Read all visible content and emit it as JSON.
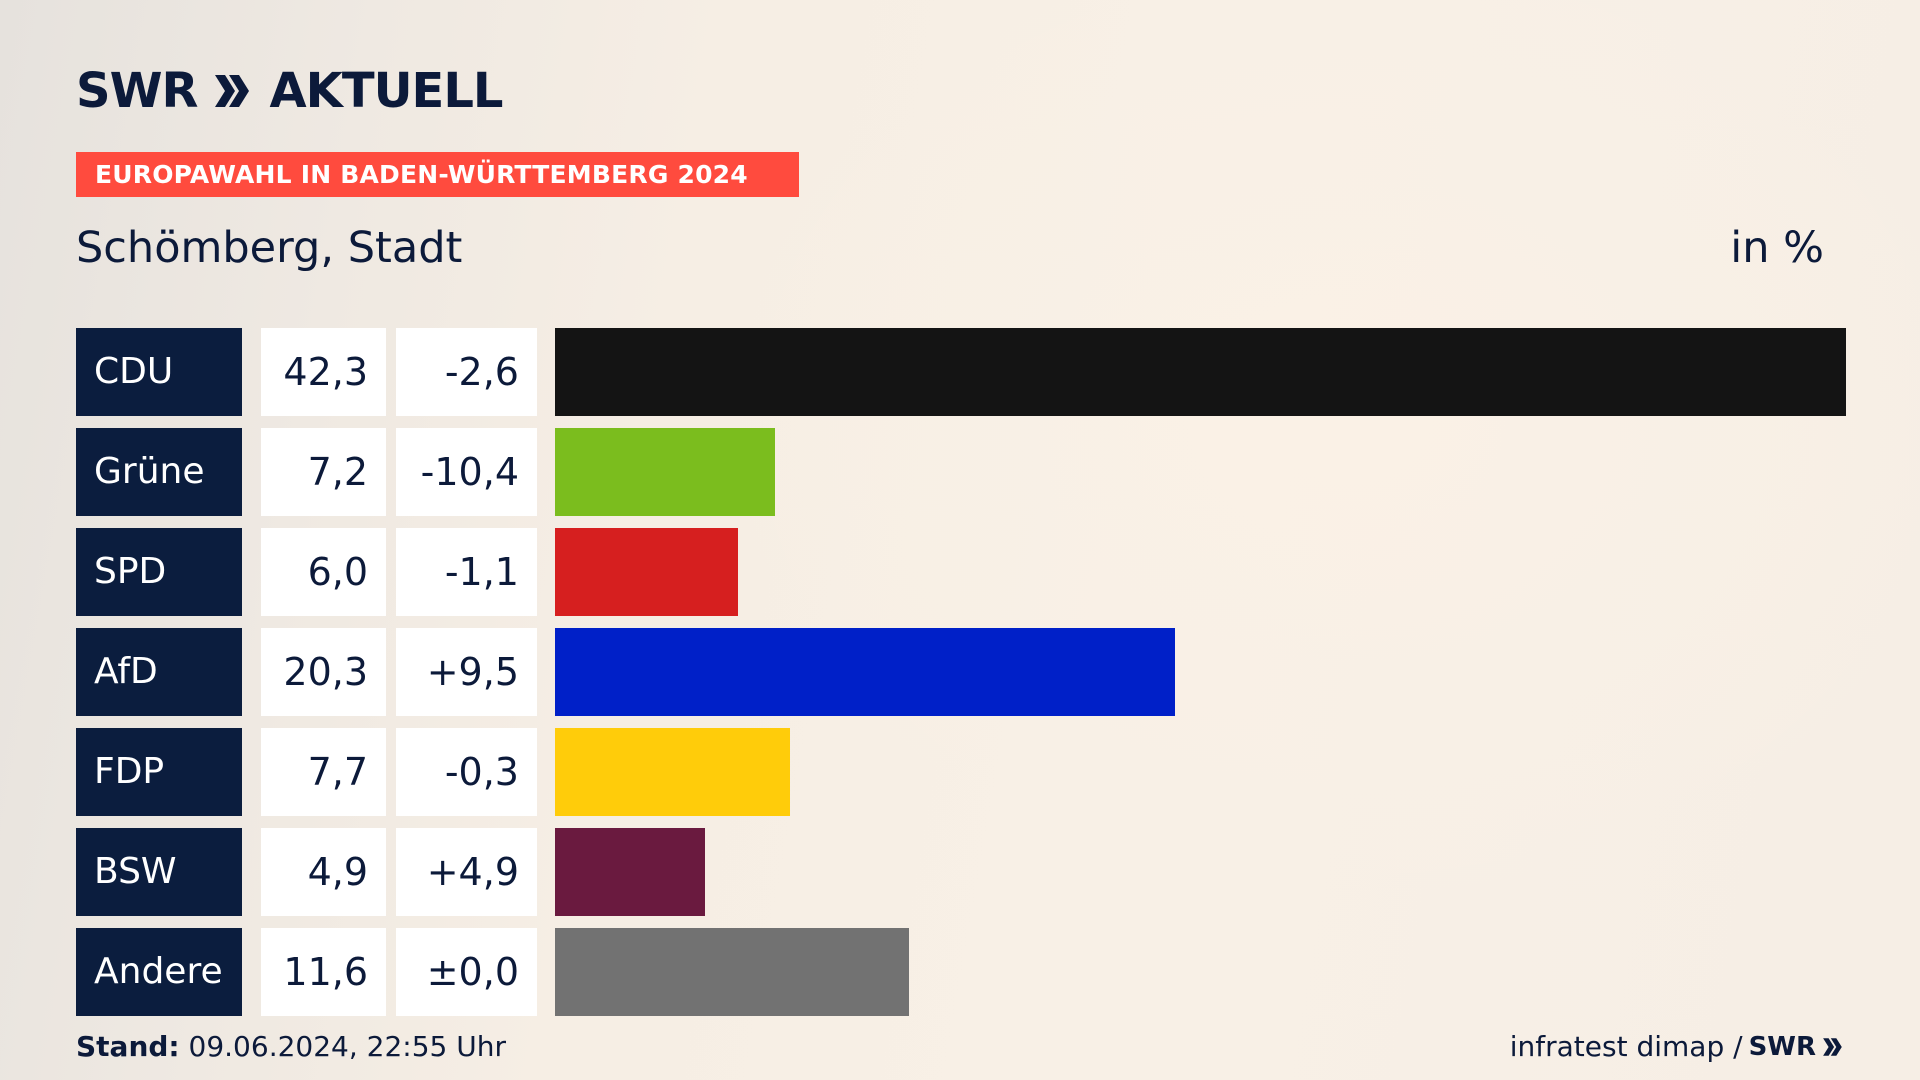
{
  "header": {
    "logo_swr": "SWR",
    "logo_aktuell": "AKTUELL",
    "banner": "EUROPAWAHL IN BADEN-WÜRTTEMBERG 2024",
    "region": "Schömberg, Stadt",
    "unit": "in %"
  },
  "footer": {
    "stand_label": "Stand:",
    "stand_value": "09.06.2024, 22:55 Uhr",
    "source": "infratest dimap /",
    "source_logo": "SWR"
  },
  "chart_data": {
    "type": "bar",
    "orientation": "horizontal",
    "categories": [
      "CDU",
      "Grüne",
      "SPD",
      "AfD",
      "FDP",
      "BSW",
      "Andere"
    ],
    "values": [
      42.3,
      7.2,
      6.0,
      20.3,
      7.7,
      4.9,
      11.6
    ],
    "value_labels": [
      "42,3",
      "7,2",
      "6,0",
      "20,3",
      "7,7",
      "4,9",
      "11,6"
    ],
    "change_labels": [
      "-2,6",
      "-10,4",
      "-1,1",
      "+9,5",
      "-0,3",
      "+4,9",
      "±0,0"
    ],
    "colors": [
      "#141414",
      "#7bbd1e",
      "#d61f1f",
      "#0020c8",
      "#ffcc0a",
      "#6a1a3f",
      "#727272"
    ],
    "max": 42.3,
    "title": "Schömberg, Stadt",
    "unit": "in %"
  }
}
